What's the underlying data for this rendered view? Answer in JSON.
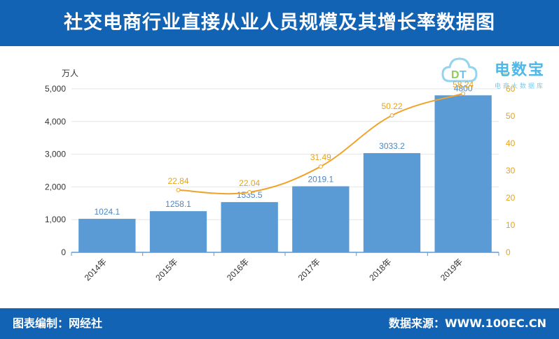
{
  "header": {
    "title": "社交电商行业直接从业人员规模及其增长率数据图"
  },
  "footer": {
    "credit": "图表编制：网经社",
    "source": "数据来源：WWW.100EC.CN"
  },
  "logo": {
    "name": "电数宝",
    "subtitle": "电商大数据库",
    "mark": "DT",
    "color": "#4fb8e8"
  },
  "chart_data": {
    "type": "bar",
    "categories": [
      "2014年",
      "2015年",
      "2016年",
      "2017年",
      "2018年",
      "2019年"
    ],
    "series": [
      {
        "type": "bar",
        "axis": "left",
        "values": [
          1024.1,
          1258.1,
          1535.5,
          2019.1,
          3033.2,
          4800
        ],
        "color": "#5b9bd5"
      },
      {
        "type": "line",
        "axis": "right",
        "values": [
          null,
          22.84,
          22.04,
          31.49,
          50.22,
          58.24
        ],
        "color": "#f0a32a"
      }
    ],
    "y_left": {
      "unit": "万人",
      "ylim": [
        0,
        5000
      ],
      "ticks": [
        "0",
        "1,000",
        "2,000",
        "3,000",
        "4,000",
        "5,000"
      ]
    },
    "y_right": {
      "unit": "%",
      "ylim": [
        0,
        60
      ],
      "ticks": [
        "0",
        "10",
        "20",
        "30",
        "40",
        "50",
        "60"
      ]
    },
    "bar_labels": [
      "1024.1",
      "1258.1",
      "1535.5",
      "2019.1",
      "3033.2",
      "4800"
    ],
    "line_labels": [
      "",
      "22.84",
      "22.04",
      "31.49",
      "50.22",
      "58.24"
    ],
    "grid": true,
    "legend": "none"
  }
}
